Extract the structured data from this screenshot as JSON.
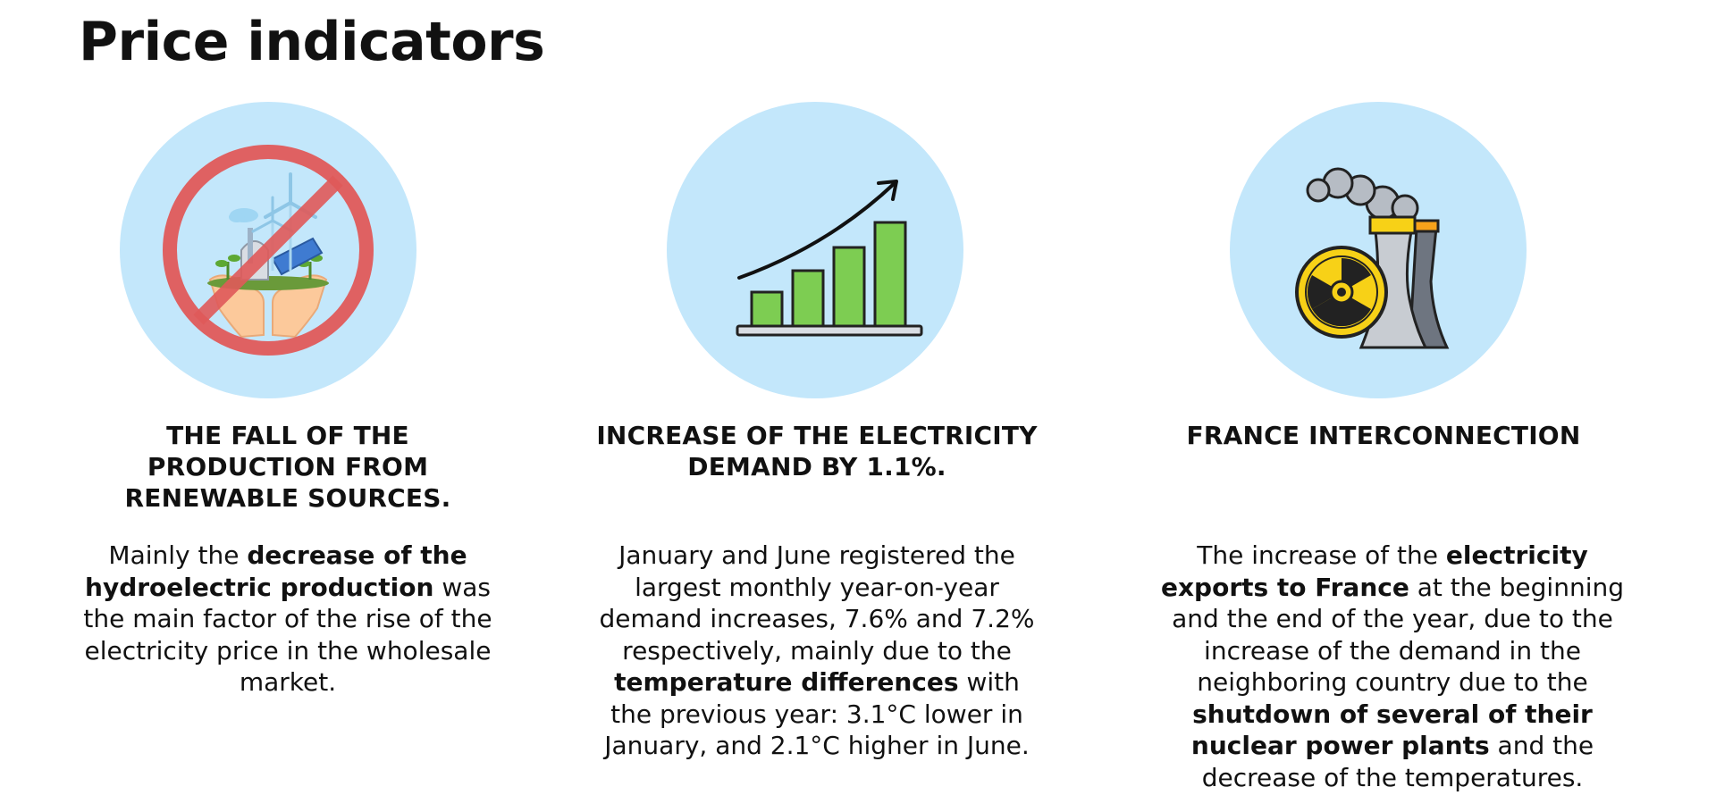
{
  "page": {
    "title": "Price indicators"
  },
  "cards": [
    {
      "icon": "no-renewable-energy-icon",
      "heading": "THE FALL OF THE PRODUCTION FROM RENEWABLE SOURCES.",
      "body": [
        {
          "text": "Mainly the ",
          "bold": false
        },
        {
          "text": "decrease of the hydroelectric production",
          "bold": true
        },
        {
          "text": " was the main factor of the rise of the electricity price in the wholesale market.",
          "bold": false
        }
      ]
    },
    {
      "icon": "rising-bar-chart-icon",
      "heading": "INCREASE OF THE ELECTRICITY DEMAND BY 1.1%.",
      "body": [
        {
          "text": "January and June registered the largest monthly year-on-year demand increases, 7.6% and 7.2% respectively, mainly due to the ",
          "bold": false
        },
        {
          "text": "temperature differences",
          "bold": true
        },
        {
          "text": " with the previous year: 3.1°C lower in January, and 2.1°C higher in June.",
          "bold": false
        }
      ]
    },
    {
      "icon": "nuclear-power-plant-icon",
      "heading": "FRANCE INTERCONNECTION",
      "body": [
        {
          "text": "The increase of the ",
          "bold": false
        },
        {
          "text": "electricity exports to France",
          "bold": true
        },
        {
          "text": " at the beginning and the end of the year, due to the increase of the demand in the neighboring country due to the ",
          "bold": false
        },
        {
          "text": "shutdown of several of their nuclear power plants",
          "bold": true
        },
        {
          "text": " and the decrease of the temperatures.",
          "bold": false
        }
      ]
    }
  ],
  "colors": {
    "circle_bg": "#c3e7fb",
    "prohibition_red": "#e05a5a",
    "bar_green": "#7dcd52",
    "radiation_yellow": "#f7d117",
    "text": "#111111"
  }
}
